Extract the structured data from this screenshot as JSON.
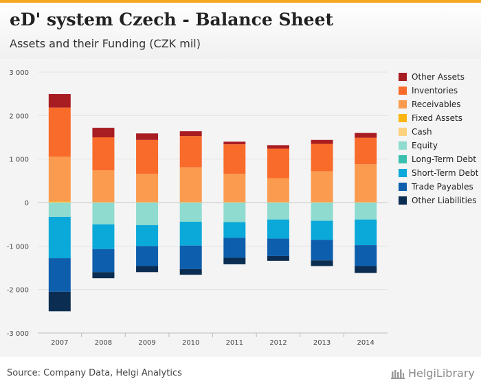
{
  "header": {
    "title": "eD' system Czech - Balance Sheet",
    "subtitle": "Assets and their Funding (CZK mil)"
  },
  "footer": {
    "source": "Source: Company Data, Helgi Analytics",
    "brand": "HelgiLibrary"
  },
  "chart_data": {
    "type": "bar",
    "stacked": true,
    "title": "eD' system Czech - Balance Sheet",
    "subtitle": "Assets and their Funding (CZK mil)",
    "xlabel": "",
    "ylabel": "",
    "ylim": [
      -3000,
      3000
    ],
    "yticks": [
      3000,
      2000,
      1000,
      0,
      -1000,
      -2000,
      -3000
    ],
    "ytick_labels": [
      "3 000",
      "2 000",
      "1 000",
      "0",
      "-1 000",
      "-2 000",
      "-3 000"
    ],
    "grid": true,
    "legend_position": "right",
    "categories": [
      "2007",
      "2008",
      "2009",
      "2010",
      "2011",
      "2012",
      "2013",
      "2014"
    ],
    "assets": [
      {
        "name": "Cash",
        "color": "#fdd27f",
        "values": [
          10,
          5,
          5,
          5,
          5,
          5,
          5,
          5
        ]
      },
      {
        "name": "Fixed Assets",
        "color": "#fbb512",
        "values": [
          15,
          5,
          5,
          5,
          5,
          5,
          5,
          5
        ]
      },
      {
        "name": "Receivables",
        "color": "#fb9b4f",
        "values": [
          1030,
          730,
          650,
          800,
          650,
          550,
          710,
          870
        ]
      },
      {
        "name": "Inventories",
        "color": "#f96b2a",
        "values": [
          1130,
          760,
          780,
          720,
          680,
          680,
          630,
          610
        ]
      },
      {
        "name": "Other Assets",
        "color": "#a81d22",
        "values": [
          310,
          220,
          150,
          110,
          60,
          80,
          90,
          110
        ]
      }
    ],
    "liabilities": [
      {
        "name": "Equity",
        "color": "#8fdbd0",
        "values": [
          330,
          500,
          520,
          440,
          450,
          390,
          420,
          390
        ]
      },
      {
        "name": "Long-Term Debt",
        "color": "#39bfae",
        "values": [
          0,
          0,
          0,
          0,
          0,
          0,
          0,
          0
        ]
      },
      {
        "name": "Short-Term Debt",
        "color": "#0aa9d9",
        "values": [
          950,
          570,
          480,
          550,
          360,
          440,
          440,
          590
        ]
      },
      {
        "name": "Trade Payables",
        "color": "#0d5eac",
        "values": [
          770,
          530,
          460,
          540,
          460,
          400,
          470,
          480
        ]
      },
      {
        "name": "Other Liabilities",
        "color": "#0b2d52",
        "values": [
          450,
          140,
          140,
          130,
          150,
          110,
          130,
          160
        ]
      }
    ],
    "legend": [
      {
        "name": "Other Assets",
        "color": "#a81d22"
      },
      {
        "name": "Inventories",
        "color": "#f96b2a"
      },
      {
        "name": "Receivables",
        "color": "#fb9b4f"
      },
      {
        "name": "Fixed Assets",
        "color": "#fbb512"
      },
      {
        "name": "Cash",
        "color": "#fdd27f"
      },
      {
        "name": "Equity",
        "color": "#8fdbd0"
      },
      {
        "name": "Long-Term Debt",
        "color": "#39bfae"
      },
      {
        "name": "Short-Term Debt",
        "color": "#0aa9d9"
      },
      {
        "name": "Trade Payables",
        "color": "#0d5eac"
      },
      {
        "name": "Other Liabilities",
        "color": "#0b2d52"
      }
    ]
  }
}
